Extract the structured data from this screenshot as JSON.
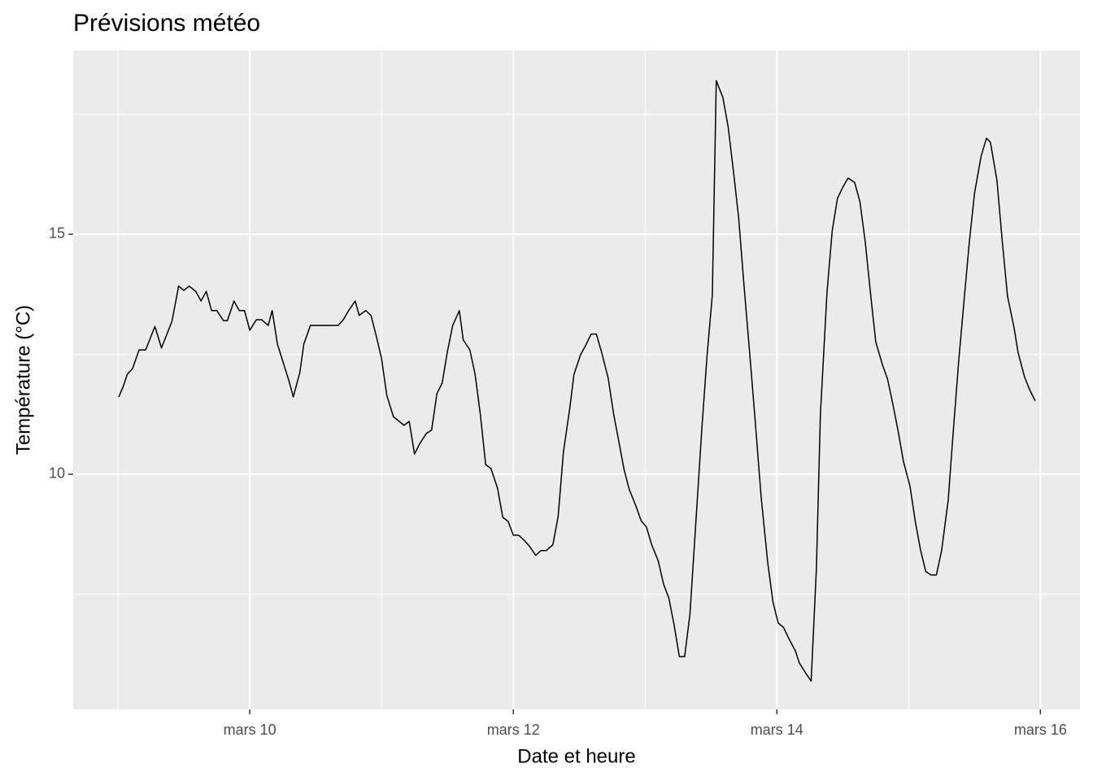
{
  "chart_data": {
    "type": "line",
    "title": "Prévisions météo",
    "x_label": "Date et heure",
    "y_label": "Température (°C)",
    "x": [
      9.006,
      9.04,
      9.07,
      9.11,
      9.16,
      9.21,
      9.28,
      9.33,
      9.41,
      9.46,
      9.5,
      9.54,
      9.59,
      9.63,
      9.67,
      9.71,
      9.75,
      9.8,
      9.83,
      9.88,
      9.92,
      9.96,
      10.0,
      10.05,
      10.09,
      10.14,
      10.17,
      10.21,
      10.3,
      10.33,
      10.38,
      10.41,
      10.46,
      10.67,
      10.71,
      10.75,
      10.8,
      10.83,
      10.88,
      10.92,
      10.96,
      11.0,
      11.04,
      11.09,
      11.17,
      11.21,
      11.25,
      11.29,
      11.34,
      11.38,
      11.42,
      11.46,
      11.5,
      11.54,
      11.59,
      11.62,
      11.67,
      11.71,
      11.75,
      11.79,
      11.83,
      11.88,
      11.92,
      11.96,
      12.0,
      12.04,
      12.08,
      12.12,
      12.17,
      12.21,
      12.25,
      12.3,
      12.34,
      12.38,
      12.43,
      12.46,
      12.51,
      12.55,
      12.59,
      12.63,
      12.67,
      12.72,
      12.76,
      12.8,
      12.84,
      12.88,
      12.93,
      12.97,
      13.01,
      13.05,
      13.1,
      13.14,
      13.18,
      13.22,
      13.26,
      13.3,
      13.34,
      13.38,
      13.43,
      13.47,
      13.51,
      13.54,
      13.59,
      13.63,
      13.67,
      13.71,
      13.75,
      13.8,
      13.84,
      13.88,
      13.93,
      13.97,
      14.01,
      14.05,
      14.09,
      14.14,
      14.17,
      14.22,
      14.26,
      14.3,
      14.33,
      14.38,
      14.42,
      14.46,
      14.5,
      14.54,
      14.59,
      14.63,
      14.67,
      14.71,
      14.75,
      14.8,
      14.84,
      14.88,
      14.92,
      14.96,
      15.01,
      15.05,
      15.09,
      15.13,
      15.17,
      15.21,
      15.25,
      15.3,
      15.34,
      15.38,
      15.42,
      15.46,
      15.5,
      15.55,
      15.59,
      15.62,
      15.67,
      15.71,
      15.75,
      15.8,
      15.83,
      15.88,
      15.92,
      15.96
    ],
    "values": [
      11.61,
      11.83,
      12.08,
      12.2,
      12.59,
      12.59,
      13.08,
      12.63,
      13.19,
      13.92,
      13.83,
      13.92,
      13.81,
      13.61,
      13.81,
      13.41,
      13.41,
      13.2,
      13.2,
      13.61,
      13.41,
      13.41,
      13.0,
      13.22,
      13.22,
      13.1,
      13.41,
      12.71,
      11.92,
      11.61,
      12.12,
      12.71,
      13.1,
      13.1,
      13.22,
      13.41,
      13.61,
      13.31,
      13.41,
      13.31,
      12.88,
      12.41,
      11.64,
      11.2,
      11.02,
      11.1,
      10.42,
      10.64,
      10.85,
      10.92,
      11.68,
      11.9,
      12.56,
      13.1,
      13.41,
      12.8,
      12.59,
      12.08,
      11.24,
      10.2,
      10.12,
      9.71,
      9.1,
      9.02,
      8.73,
      8.73,
      8.63,
      8.51,
      8.31,
      8.41,
      8.41,
      8.53,
      9.12,
      10.46,
      11.41,
      12.08,
      12.49,
      12.69,
      12.92,
      12.92,
      12.54,
      12.0,
      11.27,
      10.69,
      10.1,
      9.68,
      9.34,
      9.03,
      8.9,
      8.53,
      8.19,
      7.71,
      7.42,
      6.86,
      6.2,
      6.2,
      7.08,
      8.78,
      10.93,
      12.47,
      13.73,
      18.2,
      17.85,
      17.24,
      16.32,
      15.34,
      13.95,
      12.31,
      10.95,
      9.54,
      8.17,
      7.34,
      6.9,
      6.81,
      6.58,
      6.32,
      6.07,
      5.85,
      5.69,
      8.05,
      11.24,
      13.78,
      15.08,
      15.75,
      15.98,
      16.17,
      16.08,
      15.68,
      14.85,
      13.78,
      12.76,
      12.29,
      11.98,
      11.46,
      10.9,
      10.27,
      9.75,
      9.02,
      8.42,
      7.97,
      7.9,
      7.9,
      8.41,
      9.46,
      10.95,
      12.37,
      13.61,
      14.83,
      15.86,
      16.63,
      17.0,
      16.92,
      16.12,
      14.86,
      13.71,
      13.05,
      12.54,
      12.02,
      11.75,
      11.53
    ],
    "color": "#000000",
    "xlim": [
      8.66,
      16.3
    ],
    "xticks": [
      {
        "value": 10,
        "label": "mars 10"
      },
      {
        "value": 12,
        "label": "mars 12"
      },
      {
        "value": 14,
        "label": "mars 14"
      },
      {
        "value": 16,
        "label": "mars 16"
      }
    ],
    "xminor": [
      9,
      11,
      13,
      15
    ],
    "ylim": [
      5.1,
      18.83
    ],
    "yticks": [
      10,
      15
    ],
    "yminor": [
      7.5,
      12.5,
      17.5
    ],
    "grid": true
  }
}
